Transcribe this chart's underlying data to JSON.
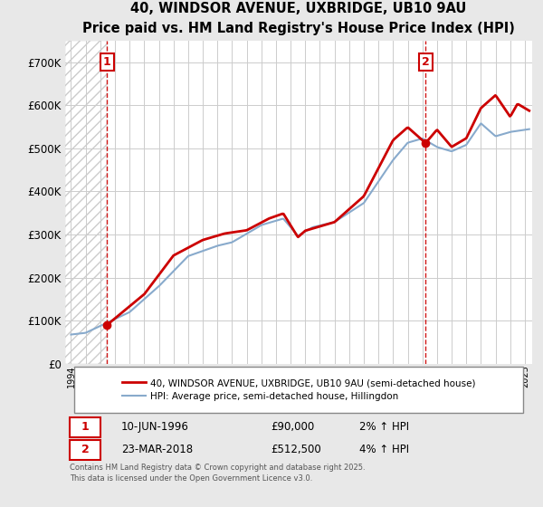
{
  "title": "40, WINDSOR AVENUE, UXBRIDGE, UB10 9AU",
  "subtitle": "Price paid vs. HM Land Registry's House Price Index (HPI)",
  "sale1_date": 1996.45,
  "sale1_price": 90000,
  "sale1_label": "1",
  "sale1_text": "10-JUN-1996",
  "sale1_price_str": "£90,000",
  "sale1_hpi": "2% ↑ HPI",
  "sale2_date": 2018.23,
  "sale2_price": 512500,
  "sale2_label": "2",
  "sale2_text": "23-MAR-2018",
  "sale2_price_str": "£512,500",
  "sale2_hpi": "4% ↑ HPI",
  "ylim": [
    0,
    750000
  ],
  "yticks": [
    0,
    100000,
    200000,
    300000,
    400000,
    500000,
    600000,
    700000
  ],
  "xlim_start": 1993.6,
  "xlim_end": 2025.5,
  "line_color": "#cc0000",
  "hpi_color": "#88aacc",
  "legend_label_property": "40, WINDSOR AVENUE, UXBRIDGE, UB10 9AU (semi-detached house)",
  "legend_label_hpi": "HPI: Average price, semi-detached house, Hillingdon",
  "footer": "Contains HM Land Registry data © Crown copyright and database right 2025.\nThis data is licensed under the Open Government Licence v3.0.",
  "background_color": "#e8e8e8",
  "plot_background": "#ffffff"
}
